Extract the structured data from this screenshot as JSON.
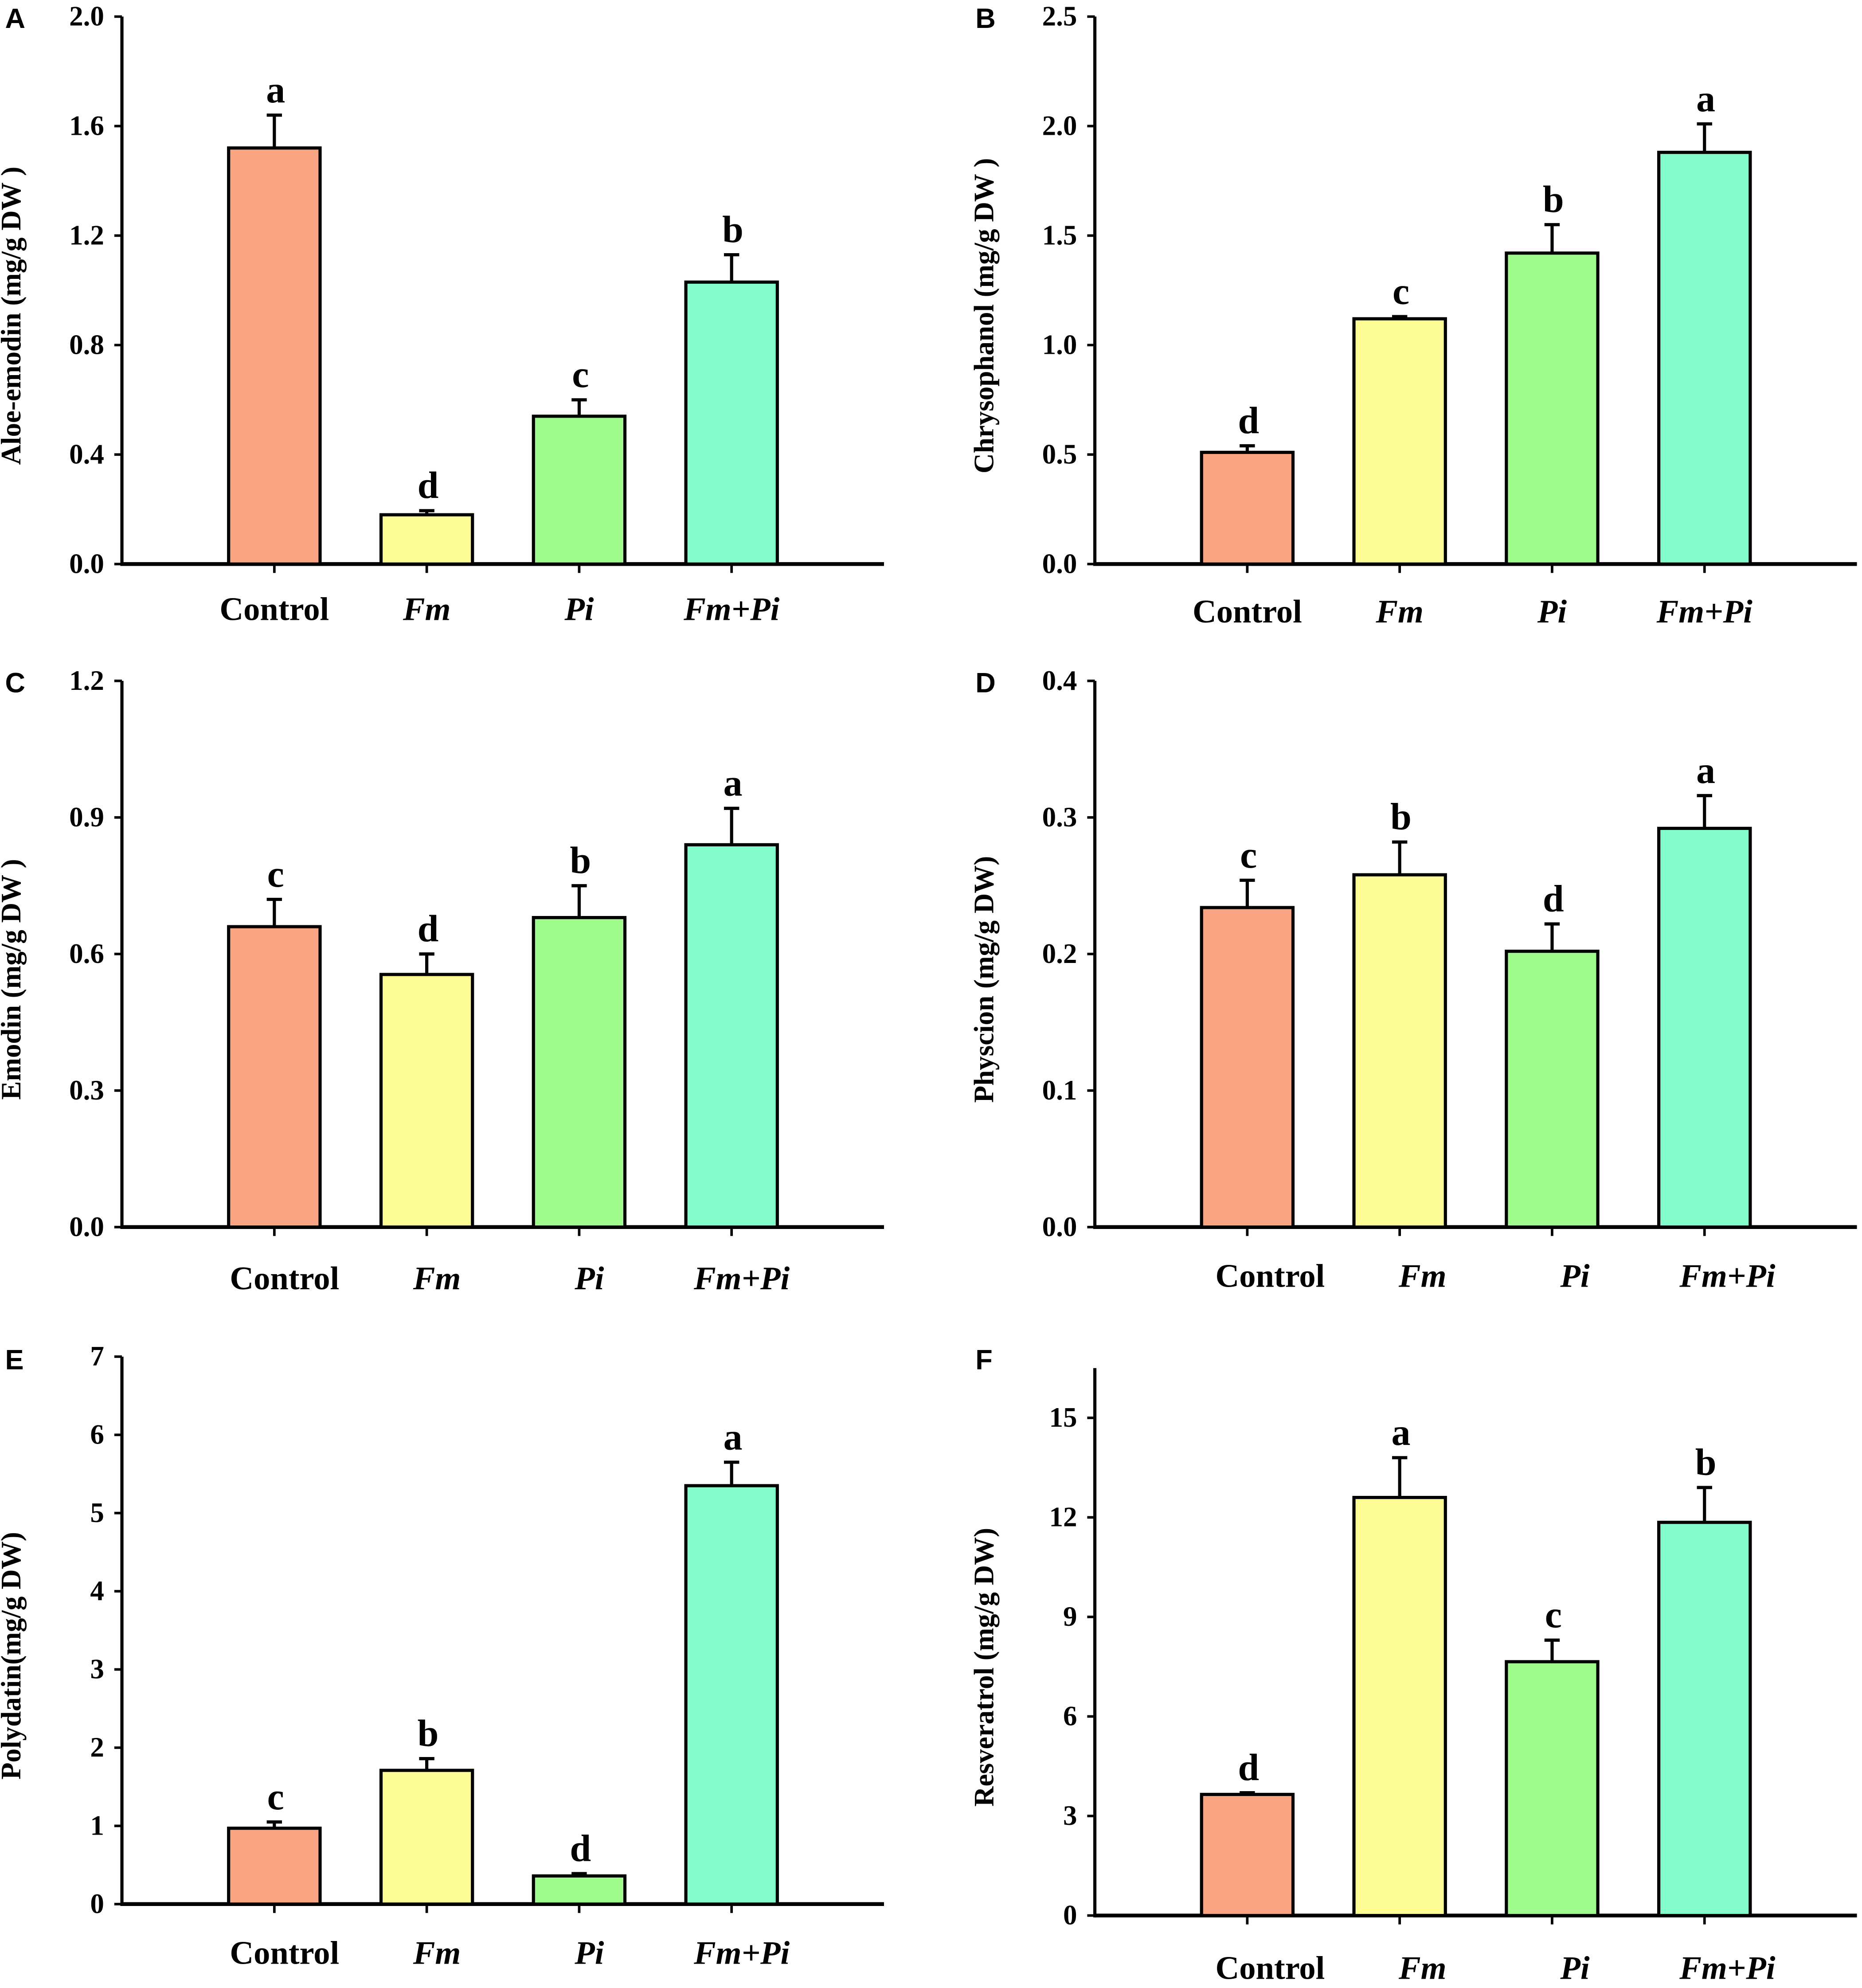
{
  "chart_data": [
    {
      "panel": "A",
      "type": "bar",
      "ylabel": "Aloe-emodin (mg/g DW )",
      "ylim": [
        0,
        2.0
      ],
      "yticks": [
        "0.0",
        "0.4",
        "0.8",
        "1.2",
        "1.6",
        "2.0"
      ],
      "categories": [
        "Control",
        "Fm",
        "Pi",
        "Fm+Pi"
      ],
      "values": [
        1.52,
        0.18,
        0.54,
        1.03
      ],
      "errors": [
        0.12,
        0.015,
        0.06,
        0.1
      ],
      "letters": [
        "a",
        "d",
        "c",
        "b"
      ]
    },
    {
      "panel": "B",
      "type": "bar",
      "ylabel": "Chrysophanol (mg/g DW )",
      "ylim": [
        0,
        2.5
      ],
      "yticks": [
        "0.0",
        "0.5",
        "1.0",
        "1.5",
        "2.0",
        "2.5"
      ],
      "categories": [
        "Control",
        "Fm",
        "Pi",
        "Fm+Pi"
      ],
      "values": [
        0.51,
        1.12,
        1.42,
        1.88
      ],
      "errors": [
        0.03,
        0.01,
        0.13,
        0.13
      ],
      "letters": [
        "d",
        "c",
        "b",
        "a"
      ]
    },
    {
      "panel": "C",
      "type": "bar",
      "ylabel": "Emodin (mg/g DW )",
      "ylim": [
        0,
        1.2
      ],
      "yticks": [
        "0.0",
        "0.3",
        "0.6",
        "0.9",
        "1.2"
      ],
      "categories": [
        "Control",
        "Fm",
        "Pi",
        "Fm+Pi"
      ],
      "values": [
        0.66,
        0.555,
        0.68,
        0.84
      ],
      "errors": [
        0.06,
        0.045,
        0.07,
        0.08
      ],
      "letters": [
        "c",
        "d",
        "b",
        "a"
      ]
    },
    {
      "panel": "D",
      "type": "bar",
      "ylabel": "Physcion (mg/g DW)",
      "ylim": [
        0,
        0.4
      ],
      "yticks": [
        "0.0",
        "0.1",
        "0.2",
        "0.3",
        "0.4"
      ],
      "categories": [
        "Control",
        "Fm",
        "Pi",
        "Fm+Pi"
      ],
      "values": [
        0.234,
        0.258,
        0.202,
        0.292
      ],
      "errors": [
        0.02,
        0.024,
        0.02,
        0.024
      ],
      "letters": [
        "c",
        "b",
        "d",
        "a"
      ]
    },
    {
      "panel": "E",
      "type": "bar",
      "ylabel": "Polydatin(mg/g DW)",
      "ylim": [
        0,
        7
      ],
      "yticks": [
        "0",
        "1",
        "2",
        "3",
        "4",
        "5",
        "6",
        "7"
      ],
      "categories": [
        "Control",
        "Fm",
        "Pi",
        "Fm+Pi"
      ],
      "values": [
        0.97,
        1.71,
        0.36,
        5.35
      ],
      "errors": [
        0.08,
        0.15,
        0.03,
        0.3
      ],
      "letters": [
        "c",
        "b",
        "d",
        "a"
      ]
    },
    {
      "panel": "F",
      "type": "bar",
      "ylabel": "Resveratrol (mg/g DW)",
      "ylim": [
        0,
        16.5
      ],
      "yticks": [
        "0",
        "3",
        "6",
        "9",
        "12",
        "15"
      ],
      "categories": [
        "Control",
        "Fm",
        "Pi",
        "Fm+Pi"
      ],
      "values": [
        3.65,
        12.6,
        7.65,
        11.85
      ],
      "errors": [
        0.05,
        1.2,
        0.65,
        1.05
      ],
      "letters": [
        "d",
        "a",
        "c",
        "b"
      ]
    }
  ],
  "colors": [
    "#F9A482",
    "#FDFD96",
    "#9EFB8C",
    "#83FBCB"
  ]
}
